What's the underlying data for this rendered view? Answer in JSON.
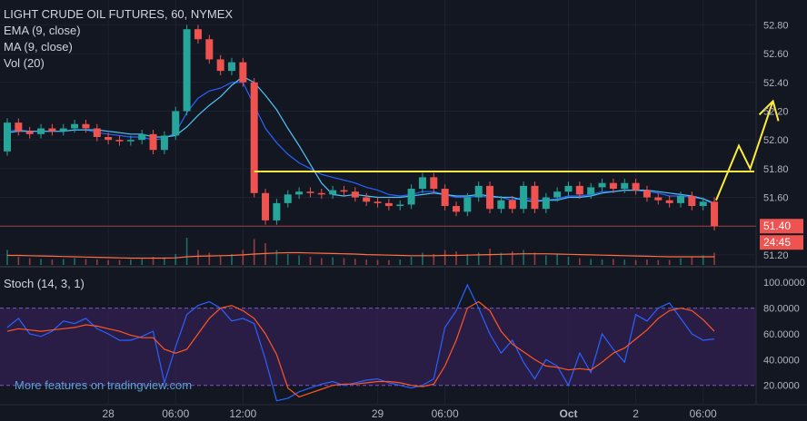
{
  "colors": {
    "background": "#131722",
    "grid": "#1e2230",
    "axis_text": "#b2b5be",
    "legend_text": "#d1d4dc",
    "up": "#26a69a",
    "down": "#ef5350",
    "ema": "#2962ff",
    "ma": "#4fc3f7",
    "volume_line": "#ff6e40",
    "hline": "#ffeb3b",
    "projection": "#ffeb3b",
    "price_label": "#ef5350",
    "stoch_k": "#2962ff",
    "stoch_d": "#ff5722",
    "stoch_band": "#2e1f4b",
    "stoch_band_border": "#7e57c2",
    "watermark": "#5a9fd4",
    "separator": "#2a2e39"
  },
  "legend": {
    "title": "LIGHT CRUDE OIL FUTURES, 60, NYMEX",
    "ema": "EMA (9, close)",
    "ma": "MA (9, close)",
    "vol": "Vol (20)"
  },
  "stoch_legend": "Stoch (14, 3, 1)",
  "watermark": "More features on tradingview.com",
  "price_axis_ticks": [
    "52.80",
    "52.60",
    "52.40",
    "52.20",
    "52.00",
    "51.80",
    "51.60",
    "51.40",
    "51.20"
  ],
  "stoch_axis_ticks": [
    "100.0000",
    "80.0000",
    "60.0000",
    "40.0000",
    "20.0000"
  ],
  "time_axis_ticks": [
    "28",
    "06:00",
    "12:00",
    "29",
    "06:00",
    "Oct",
    "2",
    "06:00"
  ],
  "price_label": {
    "price": "51.40",
    "countdown": "24:45"
  },
  "chart_data": {
    "type": "candlestick",
    "title": "LIGHT CRUDE OIL FUTURES, 60, NYMEX",
    "price_range": [
      51.13,
      52.91
    ],
    "stoch_range": [
      5,
      110
    ],
    "horizontal_line": 51.78,
    "projection_path": [
      [
        51.58,
        0
      ],
      [
        51.96,
        2
      ],
      [
        51.8,
        3
      ],
      [
        52.27,
        5
      ]
    ],
    "candles": [
      [
        51.92,
        52.12
      ],
      [
        52.12,
        52.06
      ],
      [
        52.06,
        52.04
      ],
      [
        52.04,
        52.08
      ],
      [
        52.08,
        52.06
      ],
      [
        52.06,
        52.08
      ],
      [
        52.08,
        52.11
      ],
      [
        52.11,
        52.08
      ],
      [
        52.08,
        52.02
      ],
      [
        52.02,
        52.0
      ],
      [
        52.0,
        51.99
      ],
      [
        51.99,
        52.0
      ],
      [
        52.0,
        52.04
      ],
      [
        52.04,
        51.93
      ],
      [
        51.93,
        52.03
      ],
      [
        52.03,
        52.2
      ],
      [
        52.2,
        52.77
      ],
      [
        52.77,
        52.7
      ],
      [
        52.7,
        52.56
      ],
      [
        52.56,
        52.48
      ],
      [
        52.48,
        52.54
      ],
      [
        52.54,
        52.4
      ],
      [
        52.4,
        51.63
      ],
      [
        51.63,
        51.44
      ],
      [
        51.44,
        51.56
      ],
      [
        51.56,
        51.62
      ],
      [
        51.62,
        51.64
      ],
      [
        51.64,
        51.63
      ],
      [
        51.63,
        51.62
      ],
      [
        51.62,
        51.65
      ],
      [
        51.65,
        51.64
      ],
      [
        51.64,
        51.6
      ],
      [
        51.6,
        51.57
      ],
      [
        51.57,
        51.56
      ],
      [
        51.56,
        51.54
      ],
      [
        51.54,
        51.55
      ],
      [
        51.55,
        51.66
      ],
      [
        51.66,
        51.74
      ],
      [
        51.74,
        51.66
      ],
      [
        51.66,
        51.54
      ],
      [
        51.54,
        51.5
      ],
      [
        51.5,
        51.6
      ],
      [
        51.6,
        51.68
      ],
      [
        51.68,
        51.52
      ],
      [
        51.52,
        51.58
      ],
      [
        51.58,
        51.52
      ],
      [
        51.52,
        51.68
      ],
      [
        51.68,
        51.52
      ],
      [
        51.52,
        51.6
      ],
      [
        51.6,
        51.64
      ],
      [
        51.64,
        51.68
      ],
      [
        51.68,
        51.62
      ],
      [
        51.62,
        51.67
      ],
      [
        51.67,
        51.7
      ],
      [
        51.7,
        51.66
      ],
      [
        51.66,
        51.7
      ],
      [
        51.7,
        51.65
      ],
      [
        51.65,
        51.6
      ],
      [
        51.6,
        51.58
      ],
      [
        51.58,
        51.56
      ],
      [
        51.56,
        51.61
      ],
      [
        51.61,
        51.54
      ],
      [
        51.54,
        51.57
      ],
      [
        51.57,
        51.4
      ]
    ],
    "ema": [
      52.06,
      52.07,
      52.06,
      52.06,
      52.06,
      52.06,
      52.07,
      52.07,
      52.05,
      52.04,
      52.03,
      52.02,
      52.02,
      52.0,
      52.01,
      52.05,
      52.19,
      52.29,
      52.34,
      52.36,
      52.4,
      52.4,
      52.24,
      52.08,
      51.98,
      51.9,
      51.84,
      51.8,
      51.76,
      51.74,
      51.72,
      51.7,
      51.67,
      51.65,
      51.62,
      51.61,
      51.62,
      51.64,
      51.64,
      51.62,
      51.6,
      51.6,
      51.61,
      51.6,
      51.6,
      51.58,
      51.6,
      51.58,
      51.58,
      51.59,
      51.61,
      51.61,
      51.62,
      51.64,
      51.64,
      51.65,
      51.65,
      51.64,
      51.63,
      51.61,
      51.61,
      51.6,
      51.59,
      51.55
    ],
    "ma": [
      52.05,
      52.06,
      52.06,
      52.06,
      52.06,
      52.06,
      52.07,
      52.07,
      52.07,
      52.06,
      52.05,
      52.04,
      52.04,
      52.02,
      52.02,
      52.03,
      52.09,
      52.17,
      52.24,
      52.3,
      52.38,
      52.44,
      52.4,
      52.31,
      52.21,
      52.08,
      51.96,
      51.83,
      51.7,
      51.62,
      51.61,
      51.62,
      51.61,
      51.6,
      51.6,
      51.6,
      51.61,
      51.62,
      51.63,
      51.62,
      51.61,
      51.61,
      51.62,
      51.61,
      51.6,
      51.6,
      51.58,
      51.57,
      51.58,
      51.58,
      51.6,
      51.6,
      51.61,
      51.63,
      51.64,
      51.65,
      51.65,
      51.65,
      51.64,
      51.63,
      51.62,
      51.61,
      51.59,
      51.56
    ],
    "volume": [
      0.55,
      0.3,
      0.25,
      0.22,
      0.2,
      0.22,
      0.25,
      0.22,
      0.2,
      0.18,
      0.18,
      0.2,
      0.22,
      0.3,
      0.28,
      0.4,
      1.0,
      0.55,
      0.45,
      0.35,
      0.4,
      0.55,
      0.95,
      0.8,
      0.55,
      0.4,
      0.35,
      0.3,
      0.25,
      0.28,
      0.25,
      0.22,
      0.2,
      0.18,
      0.18,
      0.2,
      0.3,
      0.45,
      0.4,
      0.55,
      0.5,
      0.4,
      0.45,
      0.6,
      0.45,
      0.5,
      0.55,
      0.45,
      0.35,
      0.4,
      0.3,
      0.25,
      0.22,
      0.2,
      0.22,
      0.2,
      0.18,
      0.2,
      0.18,
      0.18,
      0.25,
      0.3,
      0.35,
      0.45
    ],
    "volume_ma": [
      0.35,
      0.35,
      0.34,
      0.33,
      0.32,
      0.31,
      0.3,
      0.29,
      0.28,
      0.27,
      0.26,
      0.25,
      0.25,
      0.25,
      0.25,
      0.26,
      0.3,
      0.32,
      0.33,
      0.34,
      0.35,
      0.37,
      0.4,
      0.42,
      0.44,
      0.45,
      0.45,
      0.44,
      0.43,
      0.42,
      0.41,
      0.4,
      0.38,
      0.37,
      0.36,
      0.35,
      0.34,
      0.34,
      0.34,
      0.35,
      0.35,
      0.36,
      0.37,
      0.38,
      0.39,
      0.4,
      0.41,
      0.41,
      0.41,
      0.4,
      0.39,
      0.38,
      0.37,
      0.36,
      0.35,
      0.34,
      0.33,
      0.32,
      0.31,
      0.3,
      0.3,
      0.3,
      0.3,
      0.3
    ],
    "stoch_k": [
      65,
      72,
      60,
      58,
      62,
      70,
      68,
      72,
      64,
      60,
      55,
      55,
      58,
      62,
      22,
      50,
      75,
      82,
      85,
      80,
      70,
      72,
      68,
      40,
      8,
      10,
      15,
      18,
      21,
      23,
      20,
      22,
      24,
      25,
      22,
      20,
      18,
      20,
      25,
      65,
      78,
      98,
      80,
      60,
      45,
      55,
      38,
      25,
      40,
      35,
      20,
      45,
      30,
      60,
      48,
      38,
      75,
      70,
      80,
      84,
      72,
      60,
      55,
      56
    ],
    "stoch_d": [
      62,
      64,
      63,
      62,
      63,
      64,
      65,
      67,
      66,
      64,
      62,
      59,
      57,
      57,
      48,
      45,
      48,
      60,
      72,
      80,
      82,
      78,
      72,
      60,
      44,
      18,
      11,
      14,
      17,
      20,
      21,
      21,
      22,
      23,
      23,
      22,
      20,
      19,
      21,
      35,
      55,
      80,
      85,
      78,
      62,
      52,
      46,
      40,
      35,
      34,
      32,
      33,
      32,
      38,
      45,
      49,
      56,
      63,
      72,
      78,
      80,
      78,
      71,
      62
    ]
  }
}
